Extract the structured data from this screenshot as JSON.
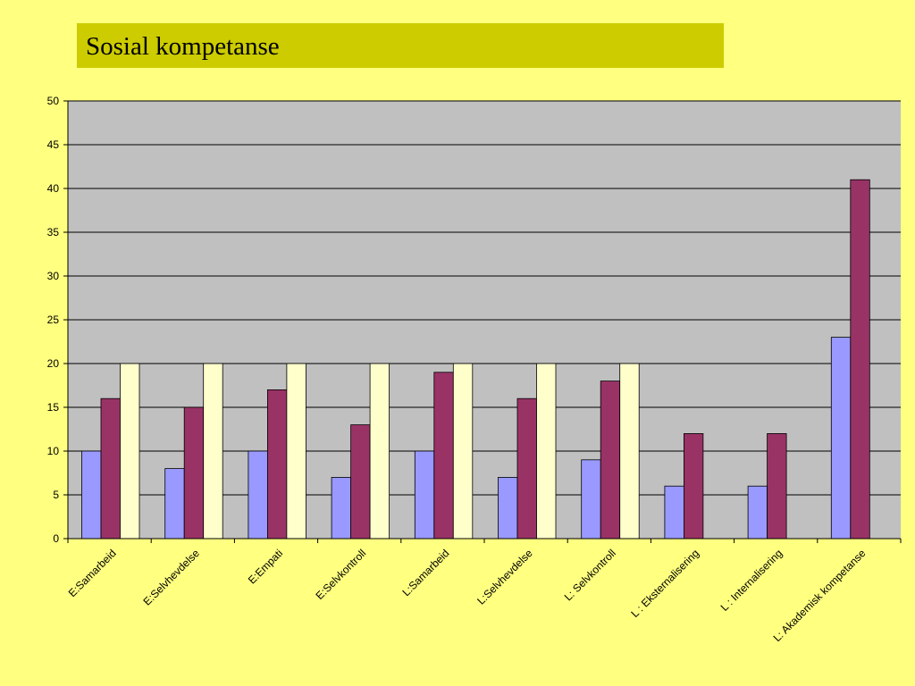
{
  "slide": {
    "title": "Sosial kompetanse"
  },
  "chart_data": {
    "type": "bar",
    "categories": [
      "E:Samarbeid",
      "E:Selvhevdelse",
      "E:Empati",
      "E:Selvkontroll",
      "L:Samarbeid",
      "L:Selvhevdelse",
      "L: Selvkontroll",
      "L : Eksternalisering",
      "L : Internalisering",
      "L: Akademisk kompetanse"
    ],
    "series": [
      {
        "values": [
          10,
          8,
          10,
          7,
          10,
          7,
          9,
          6,
          6,
          23
        ],
        "color": "#9999ff"
      },
      {
        "values": [
          16,
          15,
          17,
          13,
          19,
          16,
          18,
          12,
          12,
          41
        ],
        "color": "#993366"
      },
      {
        "values": [
          20,
          20,
          20,
          20,
          20,
          20,
          20,
          null,
          null,
          null
        ],
        "color": "#ffffcc"
      }
    ],
    "ylim": [
      0,
      50
    ],
    "yticks": [
      0,
      5,
      10,
      15,
      20,
      25,
      30,
      35,
      40,
      45,
      50
    ],
    "plot_background": "#c0c0c0",
    "grid": true,
    "legend": "none",
    "xlabel": "",
    "ylabel": ""
  }
}
